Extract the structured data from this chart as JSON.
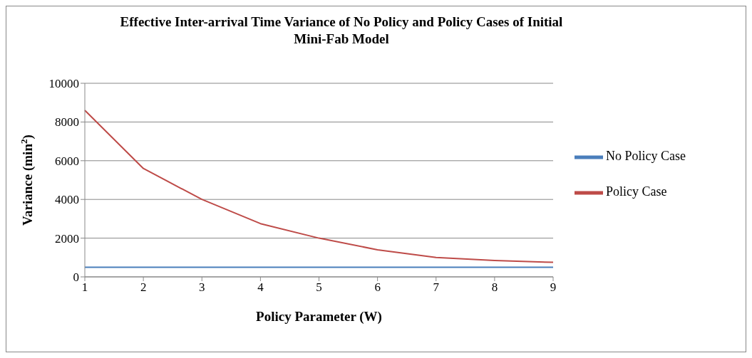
{
  "chart_data": {
    "type": "line",
    "title": "Effective Inter-arrival Time Variance of No Policy and Policy Cases of Initial Mini-Fab Model",
    "xlabel": "Policy Parameter (W)",
    "ylabel": "Variance (min$^{2}$)",
    "categories": [
      "1",
      "2",
      "3",
      "4",
      "5",
      "6",
      "7",
      "8",
      "9"
    ],
    "series": [
      {
        "name": "No Policy Case",
        "color": "#4a7ebb",
        "values": [
          500,
          500,
          500,
          500,
          500,
          500,
          500,
          500,
          500
        ]
      },
      {
        "name": "Policy Case",
        "color": "#be4b48",
        "values": [
          8600,
          5600,
          4000,
          2750,
          2000,
          1400,
          1000,
          850,
          750
        ]
      }
    ],
    "ylim": [
      0,
      10000
    ],
    "yticks": [
      0,
      2000,
      4000,
      6000,
      8000,
      10000
    ],
    "grid": "y",
    "legend": "right",
    "marker": "none",
    "line_style": "solid"
  }
}
